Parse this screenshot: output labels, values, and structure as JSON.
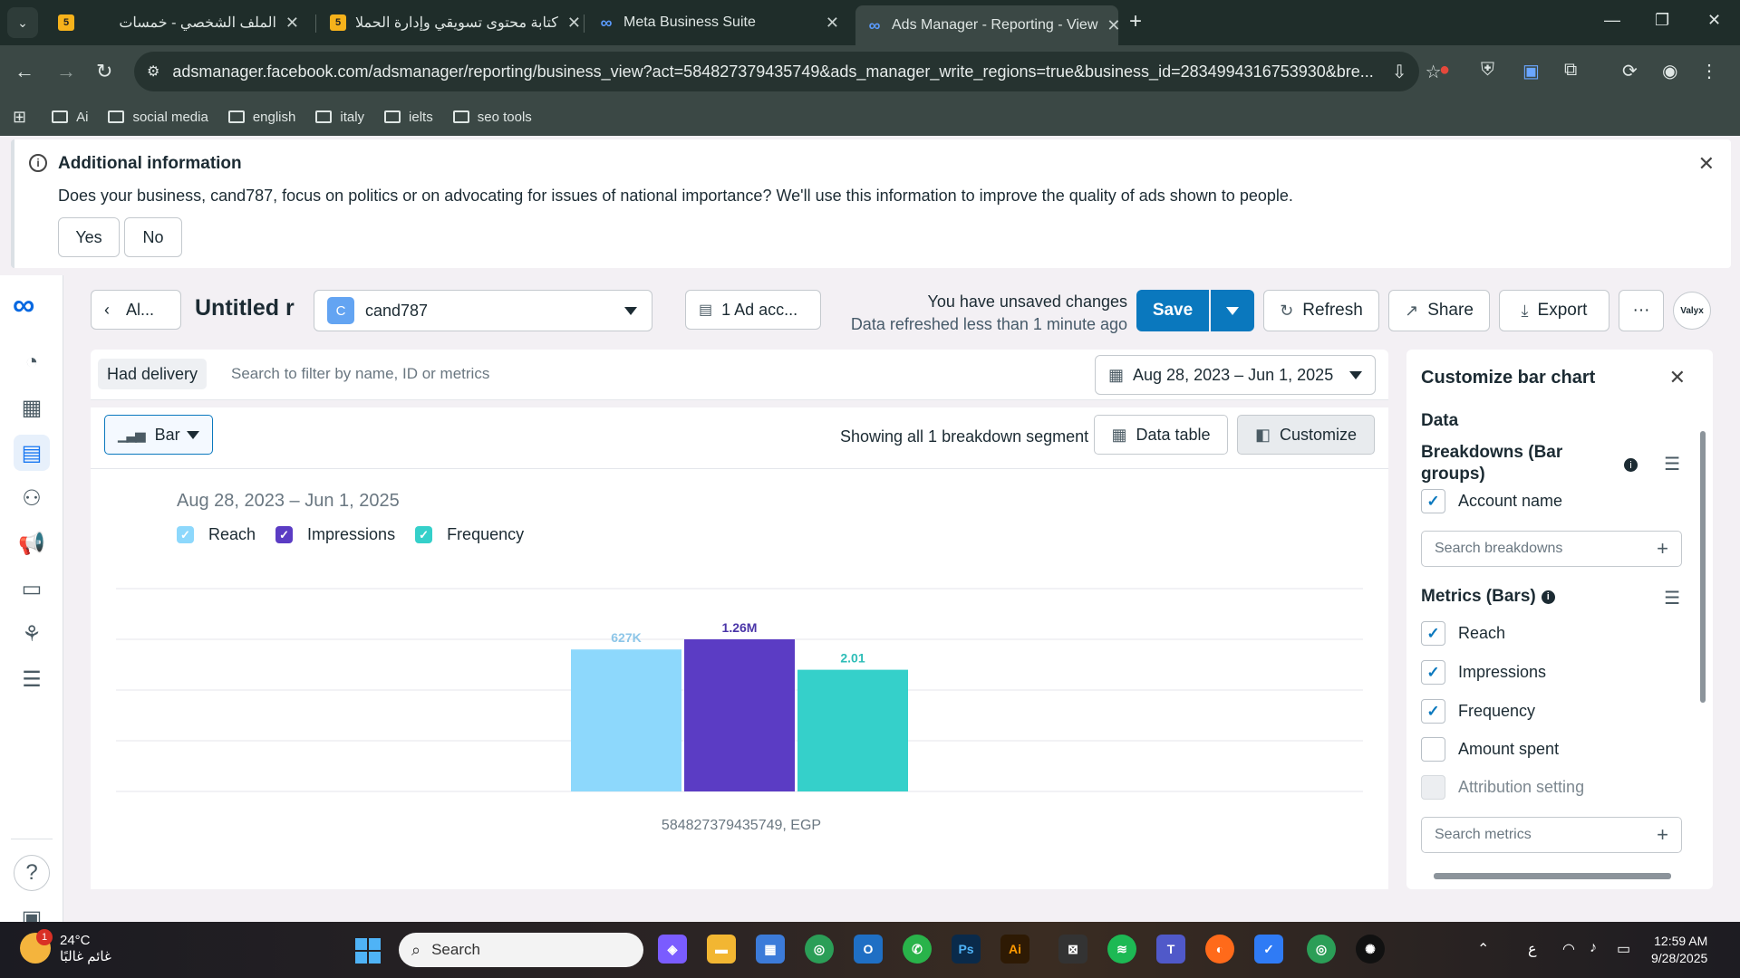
{
  "browser": {
    "tabs": [
      {
        "title": "الملف الشخصي - خمسات",
        "favicon": "5"
      },
      {
        "title": "كتابة محتوى تسويقي وإدارة الحملا",
        "favicon": "5"
      },
      {
        "title": "Meta Business Suite",
        "favicon": "meta-logo"
      },
      {
        "title": "Ads Manager - Reporting - View",
        "favicon": "meta-logo"
      }
    ],
    "url": "adsmanager.facebook.com/adsmanager/reporting/business_view?act=584827379435749&ads_manager_write_regions=true&business_id=2834994316753930&bre...",
    "bookmarks": [
      "Ai",
      "social media",
      "english",
      "italy",
      "ielts",
      "seo tools"
    ]
  },
  "info_banner": {
    "title": "Additional information",
    "text": "Does your business, cand787, focus on politics or on advocating for issues of national importance? We'll use this information to improve the quality of ads shown to people.",
    "yes_label": "Yes",
    "no_label": "No"
  },
  "toolbar": {
    "back_label": "Al...",
    "report_title": "Untitled r",
    "account_initial": "C",
    "account_name": "cand787",
    "ad_accounts_label": "1 Ad acc...",
    "unsaved_text": "You have unsaved changes",
    "refreshed_text": "Data refreshed less than 1 minute ago",
    "save_label": "Save",
    "refresh_label": "Refresh",
    "share_label": "Share",
    "export_label": "Export",
    "more_label": "···",
    "avatar_text": "Valyx"
  },
  "filters": {
    "chip_label": "Had delivery",
    "search_placeholder": "Search to filter by name, ID or metrics",
    "date_range": "Aug 28, 2023 – Jun 1, 2025"
  },
  "chart_header": {
    "type_label": "Bar",
    "showing_text": "Showing all 1 breakdown segment",
    "data_table_label": "Data table",
    "customize_label": "Customize"
  },
  "chart_data": {
    "type": "bar",
    "title": "Aug 28, 2023 – Jun 1, 2025",
    "categories": [
      "584827379435749, EGP"
    ],
    "series": [
      {
        "name": "Reach",
        "values": [
          627000
        ],
        "label": "627K",
        "color": "#8dd8fc"
      },
      {
        "name": "Impressions",
        "values": [
          1260000
        ],
        "label": "1.26M",
        "color": "#5b3cc4"
      },
      {
        "name": "Frequency",
        "values": [
          2.01
        ],
        "label": "2.01",
        "color": "#35d0ca"
      }
    ],
    "note_independent_scales": true,
    "grid": true,
    "legend_position": "top-left"
  },
  "customize_panel": {
    "title": "Customize bar chart",
    "data_heading": "Data",
    "breakdowns_heading": "Breakdowns (Bar groups)",
    "breakdowns": [
      {
        "label": "Account name",
        "checked": true
      }
    ],
    "search_breakdowns_placeholder": "Search breakdowns",
    "metrics_heading": "Metrics (Bars)",
    "metrics": [
      {
        "label": "Reach",
        "checked": true
      },
      {
        "label": "Impressions",
        "checked": true
      },
      {
        "label": "Frequency",
        "checked": true
      },
      {
        "label": "Amount spent",
        "checked": false
      },
      {
        "label": "Attribution setting",
        "checked": false,
        "disabled": true
      }
    ],
    "search_metrics_placeholder": "Search metrics"
  },
  "taskbar": {
    "weather_temp": "24°C",
    "weather_text": "غائم غالبًا",
    "weather_badge": "1",
    "search_label": "Search",
    "time": "12:59 AM",
    "date": "9/28/2025"
  }
}
